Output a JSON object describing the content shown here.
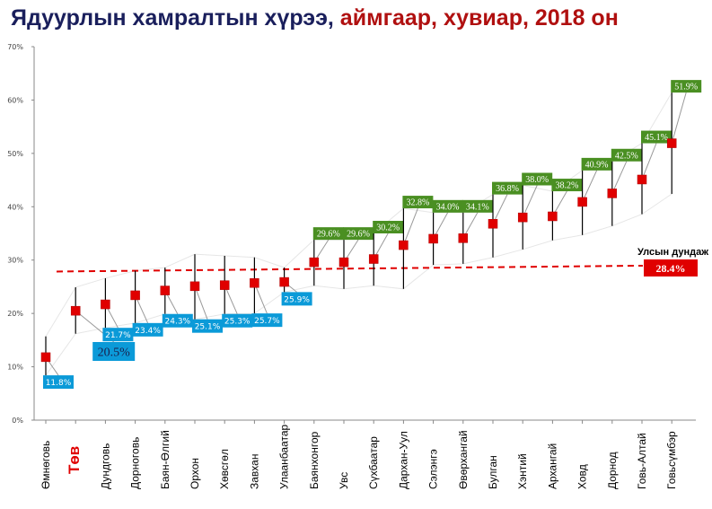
{
  "title": {
    "part1": "Ядуурлын хамралтын хүрээ, ",
    "part2": "аймгаар, хувиар, 2018 он"
  },
  "chart_data": {
    "type": "scatter",
    "title": "Ядуурлын хамралтын хүрээ, аймгаар, хувиар, 2018 он",
    "categories": [
      "Өмнөговь",
      "Төв",
      "Дундговь",
      "Дорноговь",
      "Баян-Өлгий",
      "Орхон",
      "Хөвсгөл",
      "Завхан",
      "Улаанбаатар",
      "Баянхонгор",
      "Увс",
      "Сүхбаатар",
      "Дархан-Уул",
      "Сэлэнгэ",
      "Өвөрхангай",
      "Булган",
      "Хэнтий",
      "Архангай",
      "Ховд",
      "Дорнод",
      "Говь-Алтай",
      "Говьсүмбэр"
    ],
    "values": [
      11.8,
      20.5,
      21.7,
      23.4,
      24.3,
      25.1,
      25.3,
      25.7,
      25.9,
      29.6,
      29.6,
      30.2,
      32.8,
      34.0,
      34.1,
      36.8,
      38.0,
      38.2,
      40.9,
      42.5,
      45.1,
      51.9
    ],
    "value_labels": [
      "11.8%",
      "20.5%",
      "21.7%",
      "23.4%",
      "24.3%",
      "25.1%",
      "25.3%",
      "25.7%",
      "25.9%",
      "29.6%",
      "29.6%",
      "30.2%",
      "32.8%",
      "34.0%",
      "34.1%",
      "36.8%",
      "38.0%",
      "38.2%",
      "40.9%",
      "42.5%",
      "45.1%",
      "51.9%"
    ],
    "ci_upper": [
      15.7,
      24.9,
      26.6,
      28.0,
      28.6,
      31.1,
      30.8,
      30.5,
      28.6,
      33.8,
      33.8,
      35.0,
      39.7,
      38.9,
      38.9,
      42.3,
      44.0,
      42.9,
      46.8,
      48.5,
      51.9,
      61.4
    ],
    "ci_lower": [
      8.4,
      16.2,
      17.3,
      18.2,
      19.9,
      18.9,
      19.9,
      20.0,
      24.0,
      25.2,
      24.6,
      25.2,
      24.6,
      29.1,
      29.3,
      30.5,
      32.0,
      33.7,
      34.7,
      36.4,
      38.6,
      42.4
    ],
    "highlight_category": "Төв",
    "national_average": {
      "label": "Улсын дундаж",
      "value": 28.4,
      "value_label": "28.4%"
    },
    "ylim": [
      0,
      70
    ],
    "yticks": [
      "0%",
      "10%",
      "20%",
      "30%",
      "40%",
      "50%",
      "60%",
      "70%"
    ],
    "grid": false,
    "colors": {
      "point": "#e00000",
      "below_label": "#0b9ad8",
      "above_label": "#4a8f22",
      "average": "#e00000",
      "highlight_text": "#e00000"
    }
  }
}
